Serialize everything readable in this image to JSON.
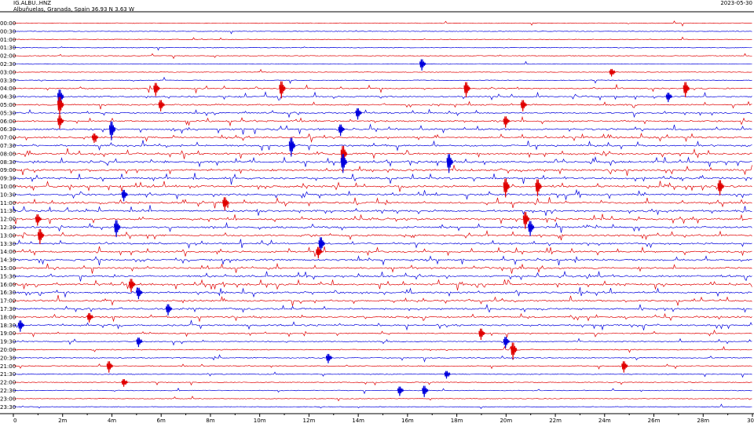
{
  "header": {
    "station": "IG.ALBU..HNZ",
    "location": "Albuñuelas, Granada, Spain  36.93 N 3.63 W",
    "date": "2023-05-30"
  },
  "colors": {
    "red": "#e00000",
    "blue": "#0000dd",
    "axis": "#000000"
  },
  "chart_data": {
    "type": "line",
    "title": "IG.ALBU..HNZ",
    "xlabel": "",
    "ylabel": "",
    "xlim": [
      0,
      30
    ],
    "x_unit": "minutes",
    "x_ticks": [
      "0",
      "2m",
      "4m",
      "6m",
      "8m",
      "10m",
      "12m",
      "14m",
      "16m",
      "18m",
      "20m",
      "22m",
      "24m",
      "26m",
      "28m",
      "30"
    ],
    "row_labels": [
      "00:00",
      "00:30",
      "01:00",
      "01:30",
      "02:00",
      "02:30",
      "03:00",
      "03:30",
      "04:00",
      "04:30",
      "05:00",
      "05:30",
      "06:00",
      "06:30",
      "07:00",
      "07:30",
      "08:00",
      "08:30",
      "09:00",
      "09:30",
      "10:00",
      "10:30",
      "11:00",
      "11:30",
      "12:00",
      "12:30",
      "13:00",
      "13:30",
      "14:00",
      "14:30",
      "15:00",
      "15:30",
      "16:00",
      "16:30",
      "17:00",
      "17:30",
      "18:00",
      "18:30",
      "19:00",
      "19:30",
      "20:00",
      "20:30",
      "21:00",
      "21:30",
      "22:00",
      "22:30",
      "23:00",
      "23:30"
    ],
    "row_colors": [
      "red",
      "blue"
    ],
    "row_activity": [
      0.1,
      0.1,
      0.1,
      0.1,
      0.1,
      0.15,
      0.1,
      0.15,
      0.45,
      0.5,
      0.55,
      0.6,
      0.65,
      0.7,
      0.75,
      0.8,
      0.85,
      0.9,
      0.85,
      0.9,
      0.9,
      0.85,
      0.8,
      0.85,
      0.85,
      0.8,
      0.75,
      0.75,
      0.75,
      0.8,
      0.8,
      0.85,
      0.85,
      0.85,
      0.75,
      0.75,
      0.75,
      0.75,
      0.35,
      0.3,
      0.3,
      0.3,
      0.25,
      0.2,
      0.15,
      0.2,
      0.1,
      0.1
    ],
    "events": [
      {
        "row": 5,
        "x": 16.6,
        "amp": 0.6
      },
      {
        "row": 6,
        "x": 24.3,
        "amp": 0.4
      },
      {
        "row": 8,
        "x": 5.8,
        "amp": 0.7
      },
      {
        "row": 8,
        "x": 10.9,
        "amp": 0.9
      },
      {
        "row": 8,
        "x": 18.4,
        "amp": 0.8
      },
      {
        "row": 8,
        "x": 27.3,
        "amp": 0.8
      },
      {
        "row": 9,
        "x": 1.9,
        "amp": 0.9
      },
      {
        "row": 9,
        "x": 26.6,
        "amp": 0.5
      },
      {
        "row": 10,
        "x": 1.9,
        "amp": 1.0
      },
      {
        "row": 10,
        "x": 6.0,
        "amp": 0.6
      },
      {
        "row": 10,
        "x": 20.7,
        "amp": 0.6
      },
      {
        "row": 11,
        "x": 14.0,
        "amp": 0.6
      },
      {
        "row": 12,
        "x": 1.9,
        "amp": 0.7
      },
      {
        "row": 12,
        "x": 20.0,
        "amp": 0.6
      },
      {
        "row": 13,
        "x": 4.0,
        "amp": 1.0
      },
      {
        "row": 13,
        "x": 13.3,
        "amp": 0.6
      },
      {
        "row": 14,
        "x": 3.3,
        "amp": 0.5
      },
      {
        "row": 15,
        "x": 11.3,
        "amp": 1.0
      },
      {
        "row": 16,
        "x": 13.4,
        "amp": 1.0
      },
      {
        "row": 17,
        "x": 13.4,
        "amp": 1.0
      },
      {
        "row": 17,
        "x": 17.7,
        "amp": 1.0
      },
      {
        "row": 20,
        "x": 20.0,
        "amp": 1.0
      },
      {
        "row": 20,
        "x": 21.3,
        "amp": 0.9
      },
      {
        "row": 20,
        "x": 28.7,
        "amp": 0.8
      },
      {
        "row": 21,
        "x": 4.5,
        "amp": 0.6
      },
      {
        "row": 22,
        "x": 8.6,
        "amp": 0.7
      },
      {
        "row": 24,
        "x": 1.0,
        "amp": 0.6
      },
      {
        "row": 24,
        "x": 20.8,
        "amp": 0.9
      },
      {
        "row": 25,
        "x": 4.2,
        "amp": 0.9
      },
      {
        "row": 25,
        "x": 21.0,
        "amp": 0.8
      },
      {
        "row": 26,
        "x": 1.1,
        "amp": 0.8
      },
      {
        "row": 27,
        "x": 12.5,
        "amp": 0.8
      },
      {
        "row": 28,
        "x": 12.4,
        "amp": 0.6
      },
      {
        "row": 32,
        "x": 4.8,
        "amp": 0.7
      },
      {
        "row": 33,
        "x": 5.1,
        "amp": 0.6
      },
      {
        "row": 35,
        "x": 6.3,
        "amp": 0.6
      },
      {
        "row": 36,
        "x": 3.1,
        "amp": 0.5
      },
      {
        "row": 37,
        "x": 0.3,
        "amp": 0.6
      },
      {
        "row": 38,
        "x": 19.0,
        "amp": 0.6
      },
      {
        "row": 39,
        "x": 5.1,
        "amp": 0.5
      },
      {
        "row": 39,
        "x": 20.0,
        "amp": 0.6
      },
      {
        "row": 40,
        "x": 20.3,
        "amp": 0.9
      },
      {
        "row": 41,
        "x": 12.8,
        "amp": 0.5
      },
      {
        "row": 42,
        "x": 3.9,
        "amp": 0.6
      },
      {
        "row": 42,
        "x": 24.8,
        "amp": 0.6
      },
      {
        "row": 43,
        "x": 17.6,
        "amp": 0.4
      },
      {
        "row": 44,
        "x": 4.5,
        "amp": 0.4
      },
      {
        "row": 45,
        "x": 15.7,
        "amp": 0.5
      },
      {
        "row": 45,
        "x": 16.7,
        "amp": 0.6
      }
    ]
  }
}
